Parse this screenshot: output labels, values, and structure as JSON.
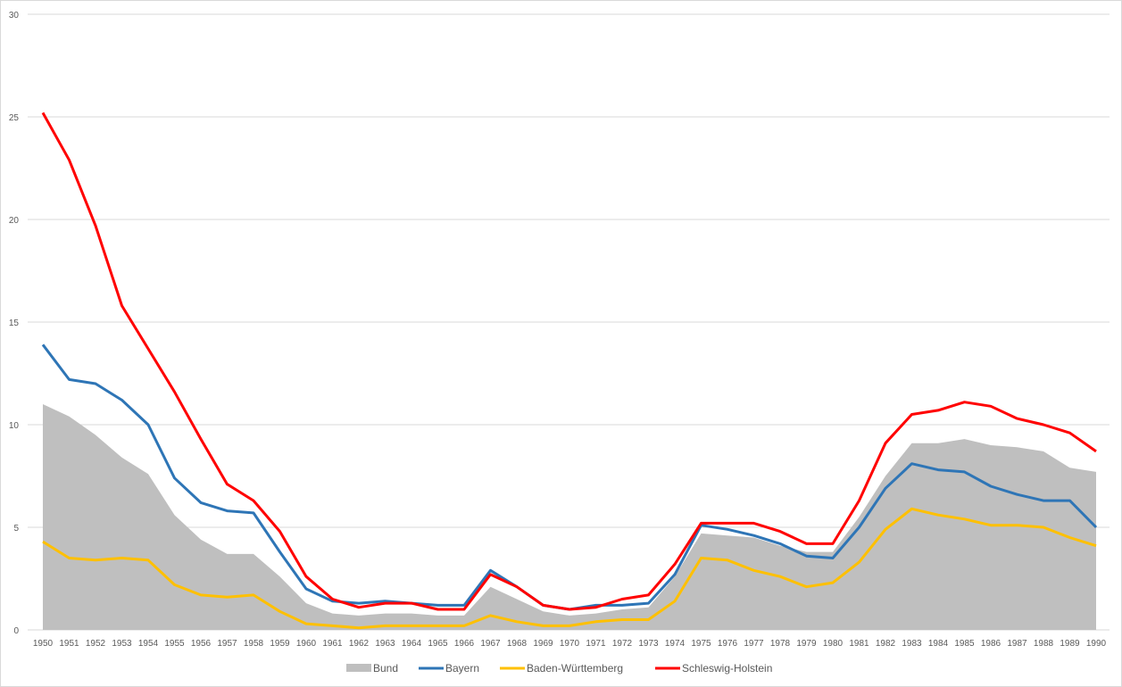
{
  "chart_data": {
    "type": "line",
    "title": "",
    "xlabel": "",
    "ylabel": "",
    "ylim": [
      0,
      30
    ],
    "yticks": [
      "0",
      "5",
      "10",
      "15",
      "20",
      "25",
      "30"
    ],
    "grid": true,
    "legend_position": "bottom",
    "categories": [
      "1950",
      "1951",
      "1952",
      "1953",
      "1954",
      "1955",
      "1956",
      "1957",
      "1958",
      "1959",
      "1960",
      "1961",
      "1962",
      "1963",
      "1964",
      "1965",
      "1966",
      "1967",
      "1968",
      "1969",
      "1970",
      "1971",
      "1972",
      "1973",
      "1974",
      "1975",
      "1976",
      "1977",
      "1978",
      "1979",
      "1980",
      "1981",
      "1982",
      "1983",
      "1984",
      "1985",
      "1986",
      "1987",
      "1988",
      "1989",
      "1990"
    ],
    "series": [
      {
        "name": "Bund",
        "type": "area",
        "color": "#bfbfbf",
        "values": [
          11.0,
          10.4,
          9.5,
          8.4,
          7.6,
          5.6,
          4.4,
          3.7,
          3.7,
          2.6,
          1.3,
          0.8,
          0.7,
          0.8,
          0.8,
          0.7,
          0.7,
          2.1,
          1.5,
          0.9,
          0.7,
          0.8,
          1.0,
          1.1,
          2.6,
          4.7,
          4.6,
          4.5,
          4.1,
          3.8,
          3.8,
          5.5,
          7.5,
          9.1,
          9.1,
          9.3,
          9.0,
          8.9,
          8.7,
          7.9,
          7.7
        ]
      },
      {
        "name": "Bayern",
        "type": "line",
        "color": "#2e75b6",
        "values": [
          13.9,
          12.2,
          12.0,
          11.2,
          10.0,
          7.4,
          6.2,
          5.8,
          5.7,
          3.8,
          2.0,
          1.4,
          1.3,
          1.4,
          1.3,
          1.2,
          1.2,
          2.9,
          2.1,
          1.2,
          1.0,
          1.2,
          1.2,
          1.3,
          2.7,
          5.1,
          4.9,
          4.6,
          4.2,
          3.6,
          3.5,
          5.0,
          6.9,
          8.1,
          7.8,
          7.7,
          7.0,
          6.6,
          6.3,
          6.3,
          5.0
        ]
      },
      {
        "name": "Baden-Württemberg",
        "type": "line",
        "color": "#ffc000",
        "values": [
          4.3,
          3.5,
          3.4,
          3.5,
          3.4,
          2.2,
          1.7,
          1.6,
          1.7,
          0.9,
          0.3,
          0.2,
          0.1,
          0.2,
          0.2,
          0.2,
          0.2,
          0.7,
          0.4,
          0.2,
          0.2,
          0.4,
          0.5,
          0.5,
          1.4,
          3.5,
          3.4,
          2.9,
          2.6,
          2.1,
          2.3,
          3.3,
          4.9,
          5.9,
          5.6,
          5.4,
          5.1,
          5.1,
          5.0,
          4.5,
          4.1
        ]
      },
      {
        "name": "Schleswig-Holstein",
        "type": "line",
        "color": "#ff0000",
        "values": [
          25.2,
          22.9,
          19.7,
          15.8,
          13.7,
          11.6,
          9.3,
          7.1,
          6.3,
          4.8,
          2.6,
          1.5,
          1.1,
          1.3,
          1.3,
          1.0,
          1.0,
          2.7,
          2.1,
          1.2,
          1.0,
          1.1,
          1.5,
          1.7,
          3.2,
          5.2,
          5.2,
          5.2,
          4.8,
          4.2,
          4.2,
          6.3,
          9.1,
          10.5,
          10.7,
          11.1,
          10.9,
          10.3,
          10.0,
          9.6,
          8.7
        ]
      }
    ]
  }
}
